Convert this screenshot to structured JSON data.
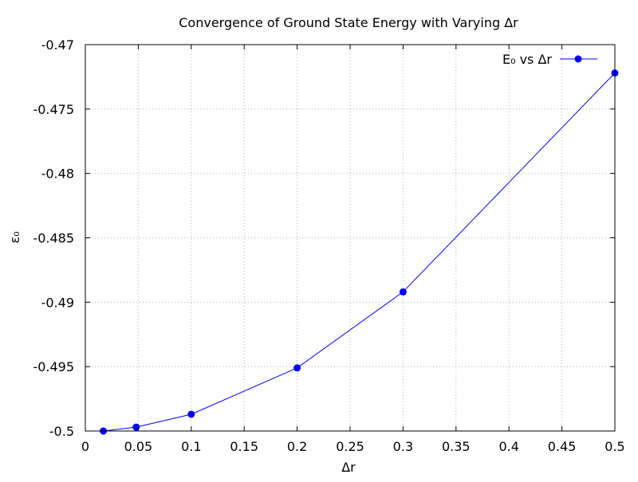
{
  "chart_data": {
    "type": "line",
    "title": "Convergence of Ground State Energy with Varying Δr",
    "xlabel": "Δr",
    "ylabel": "ε₀",
    "xlim": [
      0,
      0.5
    ],
    "ylim": [
      -0.5,
      -0.47
    ],
    "xticks": [
      0,
      0.05,
      0.1,
      0.15,
      0.2,
      0.25,
      0.3,
      0.35,
      0.4,
      0.45,
      0.5
    ],
    "xtick_labels": [
      "0",
      "0.05",
      "0.1",
      "0.15",
      "0.2",
      "0.25",
      "0.3",
      "0.35",
      "0.4",
      "0.45",
      "0.5"
    ],
    "yticks": [
      -0.5,
      -0.495,
      -0.49,
      -0.485,
      -0.48,
      -0.475,
      -0.47
    ],
    "ytick_labels": [
      "-0.5",
      "-0.495",
      "-0.49",
      "-0.485",
      "-0.48",
      "-0.475",
      "-0.47"
    ],
    "grid": true,
    "legend_position": "top-right",
    "series": [
      {
        "name": "E₀ vs Δr",
        "color": "#0000ff",
        "marker": "circle",
        "x": [
          0.017,
          0.048,
          0.1,
          0.2,
          0.3,
          0.5
        ],
        "y": [
          -0.5,
          -0.4997,
          -0.4987,
          -0.4951,
          -0.4892,
          -0.4722
        ]
      }
    ]
  }
}
